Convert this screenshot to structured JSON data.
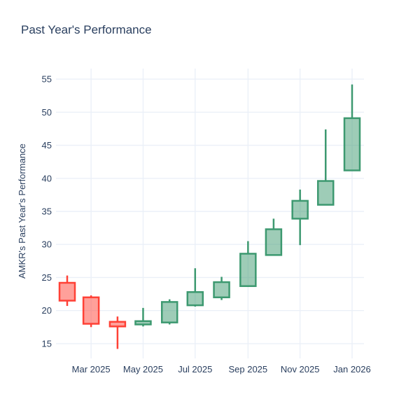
{
  "chart_data": {
    "type": "candlestick",
    "title": "Past Year's Performance",
    "xlabel": "",
    "ylabel": "AMKR's Past Year's Performance",
    "legend": "none",
    "grid": true,
    "ylim": [
      13.4,
      56.6
    ],
    "y_ticks": [
      15,
      20,
      25,
      30,
      35,
      40,
      45,
      50,
      55
    ],
    "x_tick_labels": [
      "Mar 2025",
      "May 2025",
      "Jul 2025",
      "Sep 2025",
      "Nov 2025",
      "Jan 2026"
    ],
    "x_tick_days": [
      28,
      89,
      150,
      212,
      273,
      334
    ],
    "candles": [
      {
        "month": "Feb 2025",
        "day": 0,
        "open": 24.2,
        "high": 25.3,
        "low": 20.7,
        "close": 21.5
      },
      {
        "month": "Mar 2025",
        "day": 28,
        "open": 22.0,
        "high": 22.3,
        "low": 17.5,
        "close": 18.0
      },
      {
        "month": "Apr 2025",
        "day": 59,
        "open": 18.3,
        "high": 19.1,
        "low": 14.2,
        "close": 17.6
      },
      {
        "month": "May 2025",
        "day": 89,
        "open": 17.9,
        "high": 20.4,
        "low": 17.6,
        "close": 18.4
      },
      {
        "month": "Jun 2025",
        "day": 120,
        "open": 18.2,
        "high": 21.7,
        "low": 17.9,
        "close": 21.3
      },
      {
        "month": "Jul 2025",
        "day": 150,
        "open": 20.8,
        "high": 26.4,
        "low": 20.6,
        "close": 22.8
      },
      {
        "month": "Aug 2025",
        "day": 181,
        "open": 22.0,
        "high": 25.1,
        "low": 21.6,
        "close": 24.3
      },
      {
        "month": "Sep 2025",
        "day": 212,
        "open": 23.7,
        "high": 30.5,
        "low": 23.6,
        "close": 28.6
      },
      {
        "month": "Oct 2025",
        "day": 242,
        "open": 28.4,
        "high": 33.9,
        "low": 28.3,
        "close": 32.3
      },
      {
        "month": "Nov 2025",
        "day": 273,
        "open": 33.9,
        "high": 38.3,
        "low": 29.9,
        "close": 36.6
      },
      {
        "month": "Dec 2025",
        "day": 303,
        "open": 36.0,
        "high": 47.4,
        "low": 35.9,
        "close": 39.6
      },
      {
        "month": "Jan 2026",
        "day": 334,
        "open": 41.2,
        "high": 54.2,
        "low": 41.2,
        "close": 49.1
      }
    ],
    "colors": {
      "increasing_line": "#3D9970",
      "increasing_fill": "rgba(61,153,112,0.5)",
      "decreasing_line": "#FF4136",
      "decreasing_fill": "rgba(255,65,54,0.5)",
      "grid": "#EBF0F8",
      "text": "#2a3f5f",
      "background": "#ffffff"
    }
  }
}
